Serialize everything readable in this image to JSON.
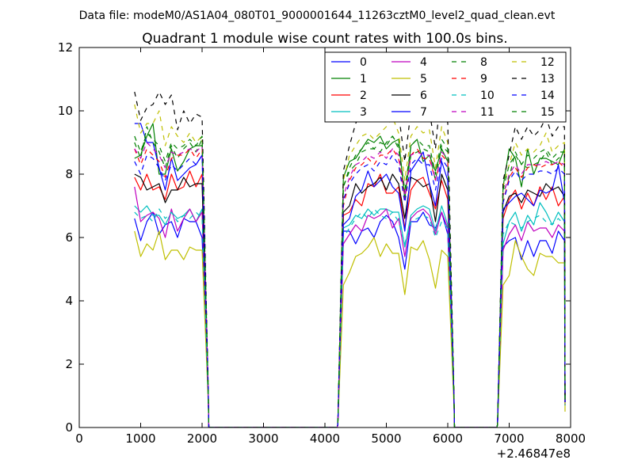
{
  "figure": {
    "suptitle": "Data file: modeM0/AS1A04_080T01_9000001644_11263cztM0_level2_quad_clean.evt",
    "offset_label": "+2.46847e8"
  },
  "chart_data": {
    "type": "line",
    "title": "Quadrant 1 module wise count rates with 100.0s bins.",
    "xlabel": "",
    "ylabel": "",
    "xlim": [
      0,
      8000
    ],
    "ylim": [
      0,
      12
    ],
    "x_offset": "+2.46847e8",
    "xticks": [
      0,
      1000,
      2000,
      3000,
      4000,
      5000,
      6000,
      7000,
      8000
    ],
    "yticks": [
      0,
      2,
      4,
      6,
      8,
      10,
      12
    ],
    "grid": false,
    "legend_position": "top-right",
    "legend_columns": 4,
    "x": [
      900,
      1000,
      1100,
      1200,
      1300,
      1400,
      1500,
      1600,
      1700,
      1800,
      1900,
      2000,
      2100,
      2110,
      2200,
      4200,
      4210,
      4300,
      4400,
      4500,
      4600,
      4700,
      4800,
      4900,
      5000,
      5100,
      5200,
      5300,
      5400,
      5500,
      5600,
      5700,
      5800,
      5900,
      6000,
      6100,
      6110,
      6200,
      6800,
      6810,
      6900,
      7000,
      7100,
      7200,
      7300,
      7400,
      7500,
      7600,
      7700,
      7800,
      7900,
      7910
    ],
    "series": [
      {
        "name": "0",
        "color": "#0000ff",
        "dash": "solid",
        "values": [
          6.6,
          5.9,
          6.5,
          6.8,
          6.1,
          6.4,
          6.5,
          6.0,
          6.6,
          6.5,
          6.5,
          6.0,
          0.9,
          0,
          0,
          0,
          0.1,
          6.2,
          6.2,
          5.8,
          6.2,
          6.3,
          6.0,
          6.5,
          6.7,
          6.5,
          6.0,
          5.0,
          6.5,
          6.5,
          6.8,
          6.4,
          6.3,
          6.8,
          6.1,
          0.9,
          0,
          0,
          0,
          0.1,
          5.7,
          5.9,
          6.0,
          5.3,
          5.9,
          5.4,
          5.9,
          5.9,
          5.5,
          6.2,
          5.9,
          0.7
        ]
      },
      {
        "name": "1",
        "color": "#008000",
        "dash": "solid",
        "values": [
          8.5,
          8.6,
          9.2,
          9.6,
          8.0,
          8.0,
          8.8,
          8.1,
          8.4,
          8.8,
          8.9,
          8.9,
          1.1,
          0,
          0,
          0,
          0.1,
          7.9,
          8.4,
          8.5,
          8.8,
          9.1,
          9.0,
          9.2,
          8.8,
          9.0,
          9.1,
          7.2,
          8.9,
          9.1,
          8.4,
          8.6,
          8.1,
          8.8,
          8.4,
          1.0,
          0,
          0,
          0,
          0.1,
          7.6,
          8.8,
          8.5,
          7.6,
          8.8,
          8.0,
          8.5,
          8.5,
          8.4,
          8.3,
          8.8,
          0.8
        ]
      },
      {
        "name": "2",
        "color": "#ff0000",
        "dash": "solid",
        "values": [
          7.9,
          7.5,
          8.0,
          7.5,
          7.6,
          7.2,
          8.0,
          7.5,
          7.6,
          8.1,
          7.6,
          8.0,
          1.0,
          0,
          0,
          0,
          0.1,
          6.7,
          6.8,
          7.2,
          7.0,
          7.7,
          7.6,
          8.0,
          7.4,
          7.4,
          7.6,
          6.3,
          7.5,
          7.8,
          7.9,
          7.4,
          6.9,
          7.8,
          7.2,
          0.9,
          0,
          0,
          0,
          0.1,
          6.6,
          7.2,
          7.5,
          6.9,
          7.4,
          7.0,
          7.6,
          7.2,
          7.6,
          7.0,
          7.3,
          0.8
        ]
      },
      {
        "name": "3",
        "color": "#00bfbf",
        "dash": "solid",
        "values": [
          7.0,
          6.8,
          7.0,
          6.7,
          6.7,
          6.4,
          6.8,
          6.6,
          6.7,
          6.9,
          6.5,
          6.9,
          0.9,
          0,
          0,
          0,
          0.1,
          6.3,
          6.4,
          6.7,
          6.6,
          6.9,
          6.7,
          6.9,
          6.9,
          6.8,
          6.8,
          5.7,
          6.7,
          6.9,
          7.0,
          6.9,
          6.2,
          7.0,
          6.4,
          0.9,
          0,
          0,
          0,
          0.1,
          5.8,
          6.5,
          6.8,
          6.2,
          6.7,
          6.4,
          7.1,
          6.8,
          6.4,
          6.8,
          6.5,
          0.7
        ]
      },
      {
        "name": "4",
        "color": "#bf00bf",
        "dash": "solid",
        "values": [
          7.6,
          6.5,
          6.7,
          6.8,
          6.6,
          6.0,
          6.9,
          6.2,
          6.6,
          6.9,
          6.5,
          6.8,
          0.9,
          0,
          0,
          0,
          0.1,
          5.8,
          6.1,
          6.4,
          6.2,
          6.7,
          6.6,
          6.7,
          6.9,
          6.3,
          6.6,
          5.4,
          6.6,
          6.8,
          6.9,
          6.7,
          6.1,
          6.8,
          6.3,
          0.9,
          0,
          0,
          0,
          0.1,
          5.6,
          6.1,
          6.4,
          5.9,
          6.5,
          6.2,
          6.3,
          6.3,
          6.0,
          6.4,
          6.2,
          0.7
        ]
      },
      {
        "name": "5",
        "color": "#bfbf00",
        "dash": "solid",
        "values": [
          6.2,
          5.4,
          5.8,
          5.6,
          6.2,
          5.3,
          5.6,
          5.6,
          5.3,
          5.7,
          5.6,
          5.6,
          0.8,
          0,
          0,
          0,
          0.1,
          4.5,
          4.9,
          5.4,
          5.5,
          5.7,
          6.0,
          5.4,
          5.8,
          5.5,
          5.5,
          4.2,
          5.7,
          5.6,
          5.9,
          5.3,
          4.4,
          5.6,
          5.4,
          0.7,
          0,
          0,
          0,
          0.1,
          4.5,
          4.8,
          5.9,
          5.4,
          5.0,
          4.8,
          5.5,
          5.4,
          5.4,
          5.2,
          5.2,
          0.5
        ]
      },
      {
        "name": "6",
        "color": "#000000",
        "dash": "solid",
        "values": [
          8.0,
          7.9,
          7.5,
          7.6,
          7.7,
          7.1,
          7.5,
          7.5,
          7.9,
          7.6,
          7.7,
          7.7,
          1.0,
          0,
          0,
          0,
          0.1,
          6.8,
          7.0,
          7.7,
          7.4,
          7.6,
          7.7,
          7.9,
          7.5,
          8.0,
          7.7,
          6.6,
          7.9,
          7.8,
          7.6,
          7.7,
          6.5,
          8.0,
          7.5,
          1.0,
          0,
          0,
          0,
          0.1,
          6.8,
          7.3,
          7.4,
          7.1,
          7.5,
          7.4,
          7.3,
          7.7,
          7.5,
          7.6,
          7.3,
          0.8
        ]
      },
      {
        "name": "7",
        "color": "#0000ff",
        "dash": "solid",
        "values": [
          9.6,
          9.6,
          9.0,
          9.0,
          8.2,
          7.5,
          8.5,
          7.8,
          8.0,
          8.2,
          8.3,
          8.6,
          1.1,
          0,
          0,
          0,
          0.1,
          6.4,
          6.6,
          7.3,
          7.5,
          8.1,
          7.6,
          7.8,
          8.0,
          7.6,
          7.4,
          6.2,
          8.1,
          8.4,
          8.7,
          7.7,
          7.0,
          8.4,
          7.8,
          1.0,
          0,
          0,
          0,
          0.1,
          6.9,
          7.1,
          7.3,
          7.4,
          7.2,
          7.0,
          7.5,
          7.4,
          7.5,
          8.3,
          7.1,
          0.8
        ]
      },
      {
        "name": "8",
        "color": "#008000",
        "dash": "dashed",
        "values": [
          9.0,
          8.5,
          9.5,
          9.0,
          8.7,
          8.2,
          8.9,
          8.5,
          8.8,
          9.0,
          8.7,
          9.1,
          1.1,
          0,
          0,
          0,
          0.1,
          7.6,
          8.1,
          8.3,
          8.7,
          8.8,
          8.8,
          8.7,
          9.0,
          9.2,
          8.8,
          7.4,
          8.6,
          8.7,
          8.8,
          8.7,
          7.8,
          8.9,
          8.7,
          1.0,
          0,
          0,
          0,
          0.1,
          7.4,
          7.9,
          8.7,
          8.3,
          8.2,
          8.3,
          8.4,
          8.7,
          8.3,
          8.5,
          8.6,
          0.8
        ]
      },
      {
        "name": "9",
        "color": "#ff0000",
        "dash": "dashed",
        "values": [
          8.8,
          8.3,
          8.8,
          8.6,
          8.4,
          7.9,
          8.5,
          8.6,
          8.6,
          8.8,
          8.5,
          8.8,
          1.1,
          0,
          0,
          0,
          0.1,
          7.0,
          7.8,
          8.2,
          8.3,
          8.5,
          8.3,
          8.6,
          8.6,
          8.8,
          8.5,
          7.2,
          8.6,
          8.8,
          8.5,
          8.5,
          7.8,
          8.6,
          8.4,
          1.0,
          0,
          0,
          0,
          0.1,
          7.1,
          7.9,
          8.2,
          7.9,
          8.2,
          8.3,
          8.2,
          8.3,
          8.3,
          8.4,
          8.2,
          0.8
        ]
      },
      {
        "name": "10",
        "color": "#00bfbf",
        "dash": "dashed",
        "values": [
          6.8,
          6.6,
          6.7,
          6.5,
          6.9,
          6.6,
          6.8,
          6.5,
          6.7,
          6.6,
          6.8,
          6.6,
          0.9,
          0,
          0,
          0,
          0.1,
          6.0,
          6.3,
          6.6,
          6.8,
          6.6,
          6.9,
          6.7,
          6.6,
          6.8,
          6.5,
          5.8,
          6.5,
          6.6,
          6.7,
          6.6,
          6.0,
          6.5,
          6.3,
          0.9,
          0,
          0,
          0,
          0.1,
          6.1,
          6.5,
          6.4,
          6.3,
          6.5,
          6.6,
          6.7,
          6.5,
          6.4,
          6.6,
          6.4,
          0.7
        ]
      },
      {
        "name": "11",
        "color": "#bf00bf",
        "dash": "dashed",
        "values": [
          8.8,
          8.5,
          9.0,
          8.8,
          8.6,
          8.2,
          8.7,
          8.6,
          8.7,
          8.8,
          8.7,
          8.9,
          1.1,
          0,
          0,
          0,
          0.1,
          7.3,
          7.9,
          8.3,
          8.4,
          8.6,
          8.5,
          8.7,
          8.5,
          8.8,
          8.6,
          7.3,
          8.6,
          8.7,
          8.6,
          8.6,
          7.8,
          8.7,
          8.5,
          1.0,
          0,
          0,
          0,
          0.1,
          7.3,
          8.0,
          8.3,
          8.0,
          8.3,
          8.3,
          8.3,
          8.4,
          8.3,
          8.4,
          8.3,
          0.8
        ]
      },
      {
        "name": "12",
        "color": "#bfbf00",
        "dash": "dashed",
        "values": [
          10.2,
          9.3,
          9.6,
          9.6,
          10.0,
          8.9,
          9.5,
          9.2,
          9.0,
          9.3,
          9.0,
          9.2,
          1.2,
          0,
          0,
          0,
          0.1,
          7.8,
          8.6,
          8.9,
          9.2,
          9.3,
          9.1,
          9.3,
          9.5,
          9.8,
          9.3,
          7.8,
          9.2,
          9.5,
          9.3,
          9.4,
          8.2,
          9.5,
          9.0,
          1.1,
          0,
          0,
          0,
          0.1,
          7.6,
          8.3,
          9.0,
          8.6,
          8.8,
          8.7,
          8.9,
          9.3,
          8.7,
          8.9,
          9.0,
          0.8
        ]
      },
      {
        "name": "13",
        "color": "#000000",
        "dash": "dashed",
        "values": [
          10.6,
          9.7,
          10.1,
          10.2,
          10.6,
          10.2,
          10.5,
          9.4,
          10.0,
          9.6,
          9.9,
          9.8,
          1.2,
          0,
          0,
          0,
          0.1,
          8.1,
          8.9,
          9.6,
          10.0,
          10.1,
          9.8,
          10.3,
          10.2,
          10.4,
          9.9,
          8.4,
          10.0,
          10.3,
          10.1,
          10.0,
          8.8,
          10.9,
          9.6,
          1.1,
          0,
          0,
          0,
          0.1,
          7.8,
          8.6,
          9.5,
          9.1,
          9.5,
          9.2,
          9.4,
          9.8,
          9.2,
          9.5,
          9.5,
          0.9
        ]
      },
      {
        "name": "14",
        "color": "#0000ff",
        "dash": "dashed",
        "values": [
          8.4,
          8.0,
          8.6,
          8.5,
          8.2,
          7.8,
          8.3,
          8.1,
          8.3,
          8.5,
          8.3,
          8.6,
          1.1,
          0,
          0,
          0,
          0.1,
          7.2,
          7.7,
          8.0,
          8.2,
          8.3,
          8.1,
          8.4,
          8.3,
          8.6,
          8.3,
          7.1,
          8.3,
          8.5,
          8.3,
          8.3,
          7.5,
          8.5,
          8.2,
          1.0,
          0,
          0,
          0,
          0.1,
          7.1,
          7.8,
          8.1,
          7.8,
          8.0,
          8.0,
          8.1,
          8.1,
          8.0,
          8.2,
          8.0,
          0.8
        ]
      },
      {
        "name": "15",
        "color": "#008000",
        "dash": "dashed",
        "values": [
          9.2,
          8.7,
          9.3,
          9.1,
          8.9,
          8.4,
          9.0,
          8.8,
          8.9,
          9.1,
          8.9,
          9.2,
          1.1,
          0,
          0,
          0,
          0.1,
          7.6,
          8.2,
          8.6,
          8.8,
          9.0,
          8.8,
          9.0,
          8.9,
          9.2,
          8.9,
          7.5,
          8.9,
          9.1,
          8.9,
          8.9,
          8.0,
          9.1,
          8.8,
          1.0,
          0,
          0,
          0,
          0.1,
          7.5,
          8.3,
          8.6,
          8.3,
          8.6,
          8.5,
          8.7,
          8.8,
          8.5,
          8.7,
          8.7,
          0.8
        ]
      }
    ]
  }
}
